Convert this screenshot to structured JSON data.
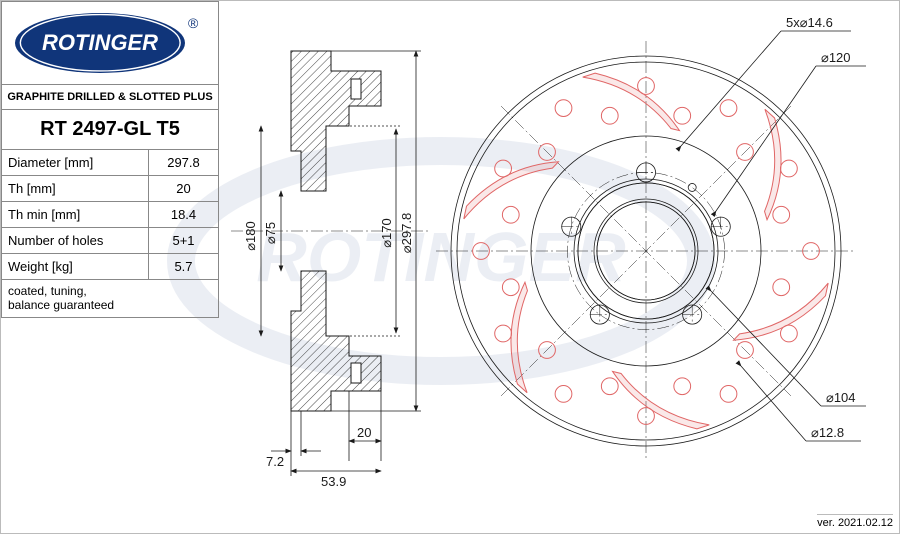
{
  "brand": {
    "name": "ROTINGER",
    "registered": "®",
    "logo_bg": "#10357a",
    "logo_fg": "#ffffff"
  },
  "product": {
    "type_label": "GRAPHITE DRILLED & SLOTTED PLUS",
    "part_number": "RT 2497-GL T5",
    "note": "coated, tuning,\nbalance guaranteed",
    "version_label": "ver. 2021.02.12"
  },
  "specs": [
    {
      "label": "Diameter [mm]",
      "value": "297.8"
    },
    {
      "label": "Th [mm]",
      "value": "20"
    },
    {
      "label": "Th min [mm]",
      "value": "18.4"
    },
    {
      "label": "Number of holes",
      "value": "5+1"
    },
    {
      "label": "Weight [kg]",
      "value": "5.7"
    }
  ],
  "side_view": {
    "dimensions": {
      "d180": "⌀180",
      "d75": "⌀75",
      "d170": "⌀170",
      "d297": "⌀297.8",
      "depth_7_2": "7.2",
      "th_20": "20",
      "offset_53_9": "53.9"
    },
    "colors": {
      "line": "#1a1a1a",
      "fill": "#e2e2e2"
    }
  },
  "front_view": {
    "callouts": {
      "bolt_pattern": "5x⌀14.6",
      "pcd": "⌀120",
      "cb": "⌀104",
      "drill": "⌀12.8"
    },
    "geometry": {
      "outer_d": 297.8,
      "slot_count": 6,
      "drill_rings": 2,
      "drill_per_ring": 12,
      "bolt_holes": 5
    },
    "colors": {
      "line": "#1a1a1a",
      "red": "#e06666",
      "gray": "#e2e2e2"
    }
  }
}
